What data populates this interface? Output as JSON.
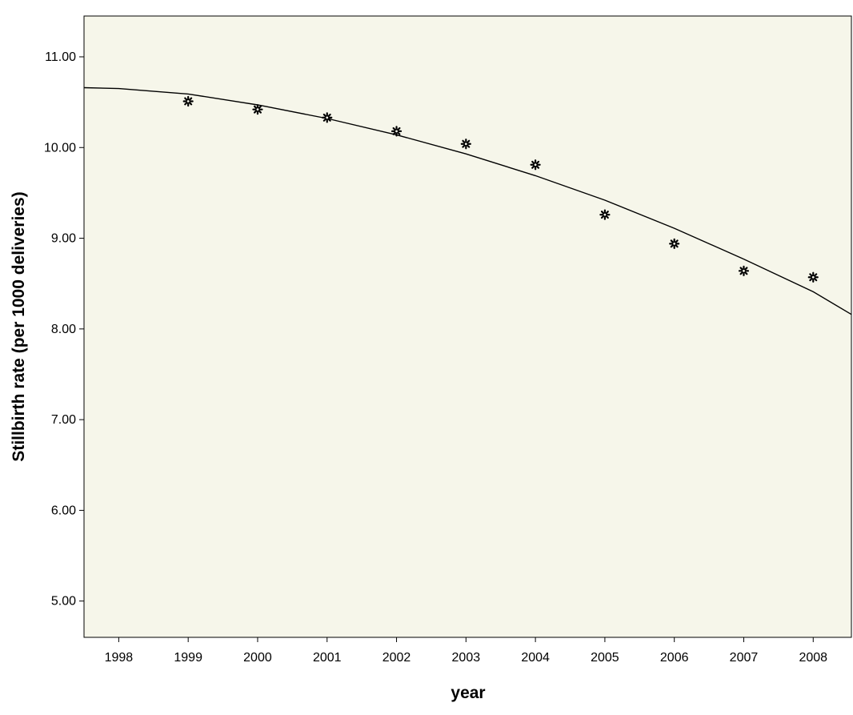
{
  "chart_data": {
    "type": "scatter",
    "title": "",
    "xlabel": "year",
    "ylabel": "Stillbirth rate (per 1000 deliveries)",
    "xlim": [
      1997.5,
      2008.55
    ],
    "ylim": [
      4.6,
      11.45
    ],
    "x_ticks": [
      1998,
      1999,
      2000,
      2001,
      2002,
      2003,
      2004,
      2005,
      2006,
      2007,
      2008
    ],
    "y_ticks": [
      "5.00",
      "6.00",
      "7.00",
      "8.00",
      "9.00",
      "10.00",
      "11.00"
    ],
    "grid": false,
    "background_color": "#f6f6ea",
    "marker": "asterisk",
    "series": [
      {
        "x": [
          1999,
          2000,
          2001,
          2002,
          2003,
          2004,
          2005,
          2006,
          2007,
          2008
        ],
        "y": [
          10.51,
          10.42,
          10.33,
          10.18,
          10.04,
          9.81,
          9.26,
          8.94,
          8.64,
          8.57
        ]
      }
    ],
    "fit_line": {
      "type": "quadratic",
      "x": [
        1997.5,
        1998,
        1999,
        2000,
        2001,
        2002,
        2003,
        2004,
        2005,
        2006,
        2007,
        2008,
        2008.55
      ],
      "y": [
        10.66,
        10.65,
        10.59,
        10.47,
        10.32,
        10.14,
        9.93,
        9.69,
        9.42,
        9.11,
        8.77,
        8.41,
        8.16
      ]
    }
  }
}
